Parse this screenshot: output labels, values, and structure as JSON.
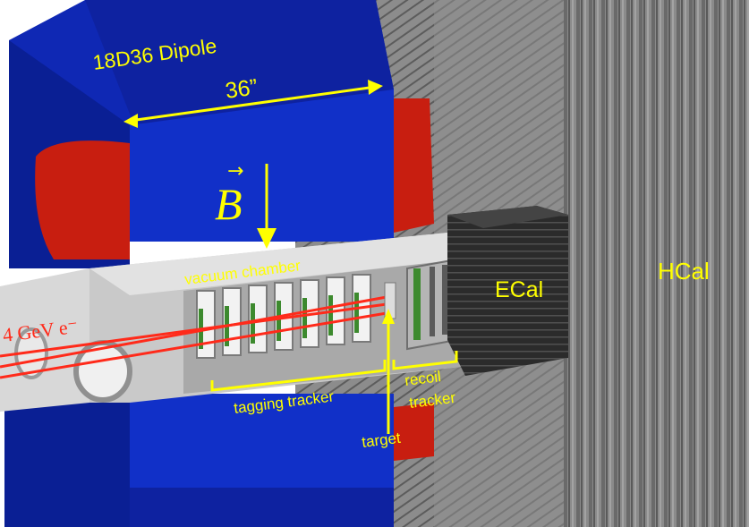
{
  "labels": {
    "magnet": "18D36 Dipole",
    "width": "36”",
    "field_symbol": "B",
    "chamber": "vacuum chamber",
    "beam": "4 GeV e⁻",
    "tagging": "tagging tracker",
    "recoil_line1": "recoil",
    "recoil_line2": "tracker",
    "target": "target",
    "ecal": "ECal",
    "hcal": "HCal"
  },
  "colors": {
    "magnet_blue": "#0f28b4",
    "coil_red": "#c81e10",
    "label_yellow": "#ffff00",
    "beam_red": "#ff2a1a"
  }
}
